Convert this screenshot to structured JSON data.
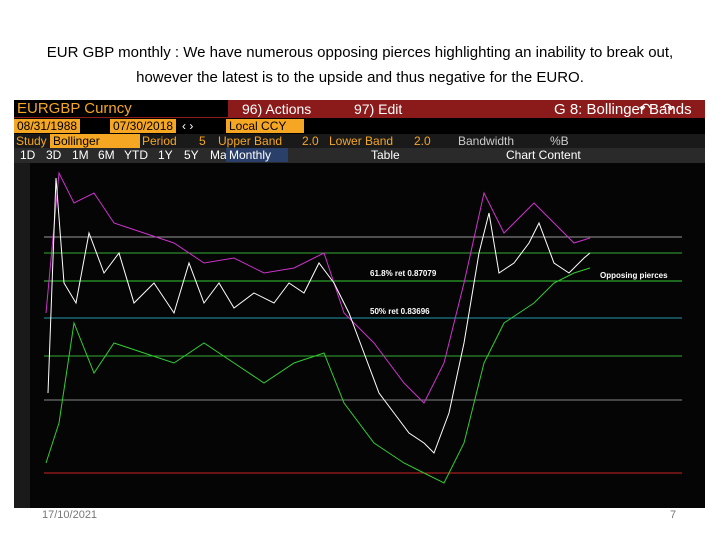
{
  "slide": {
    "title": "EUR GBP monthly : We have numerous opposing pierces highlighting an inability to break out, however the latest is to the upside and thus negative for the EURO.",
    "date": "17/10/2021",
    "page": "7"
  },
  "terminal": {
    "ticker": "EURGBP Curncy",
    "actions": "96) Actions",
    "edit": "97) Edit",
    "function": "G 8: Bollinger Bands",
    "start_date": "08/31/1988",
    "end_date": "07/30/2018",
    "currency": "Local CCY",
    "study_label": "Study",
    "study": "Bollinger",
    "period_label": "Period",
    "period": "5",
    "upper_label": "Upper Band",
    "upper": "2.0",
    "lower_label": "Lower Band",
    "lower": "2.0",
    "bandwidth": "Bandwidth",
    "pctb": "%B",
    "ranges": [
      "1D",
      "3D",
      "1M",
      "6M",
      "YTD",
      "1Y",
      "5Y",
      "Max"
    ],
    "frequency": "Monthly",
    "table": "Table",
    "chart_content": "Chart Content"
  },
  "annotations": [
    "61.8% ret 0.87079",
    "50% ret 0.83696",
    "Opposing pierces"
  ]
}
